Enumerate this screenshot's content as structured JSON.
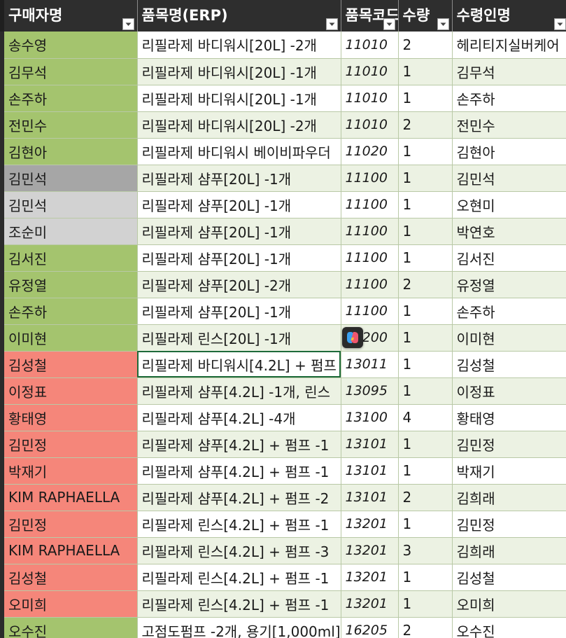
{
  "colors": {
    "header_bg": "#2e2e2e",
    "green": "#a4c46e",
    "gray_dark": "#a6a6a6",
    "gray_light": "#d2d2d2",
    "red": "#f5867a",
    "row_alt": "#ecf2e3"
  },
  "header": {
    "buyer": "구매자명",
    "item_erp": "품목명(ERP)",
    "item_code": "품목코드",
    "qty": "수량",
    "recipient": "수령인명"
  },
  "rows": [
    {
      "buyer": "송수영",
      "item": "리필라제 바디워시[20L] -2개",
      "code": "11010",
      "qty": "2",
      "recipient": "헤리티지실버케어",
      "fill": "green"
    },
    {
      "buyer": "김무석",
      "item": "리필라제 바디워시[20L] -1개",
      "code": "11010",
      "qty": "1",
      "recipient": "김무석",
      "fill": "green"
    },
    {
      "buyer": "손주하",
      "item": "리필라제 바디워시[20L] -1개",
      "code": "11010",
      "qty": "1",
      "recipient": "손주하",
      "fill": "green"
    },
    {
      "buyer": "전민수",
      "item": "리필라제 바디워시[20L] -2개",
      "code": "11010",
      "qty": "2",
      "recipient": "전민수",
      "fill": "green"
    },
    {
      "buyer": "김현아",
      "item": "리필라제 바디워시 베이비파우더",
      "code": "11020",
      "qty": "1",
      "recipient": "김현아",
      "fill": "green"
    },
    {
      "buyer": "김민석",
      "item": "리필라제 샴푸[20L] -1개",
      "code": "11100",
      "qty": "1",
      "recipient": "김민석",
      "fill": "gray_dark"
    },
    {
      "buyer": "김민석",
      "item": "리필라제 샴푸[20L] -1개",
      "code": "11100",
      "qty": "1",
      "recipient": "오현미",
      "fill": "gray_light"
    },
    {
      "buyer": "조순미",
      "item": "리필라제 샴푸[20L] -1개",
      "code": "11100",
      "qty": "1",
      "recipient": "박연호",
      "fill": "gray_light"
    },
    {
      "buyer": "김서진",
      "item": "리필라제 샴푸[20L] -1개",
      "code": "11100",
      "qty": "1",
      "recipient": "김서진",
      "fill": "green"
    },
    {
      "buyer": "유정열",
      "item": "리필라제 샴푸[20L] -2개",
      "code": "11100",
      "qty": "2",
      "recipient": "유정열",
      "fill": "green"
    },
    {
      "buyer": "손주하",
      "item": "리필라제 샴푸[20L] -1개",
      "code": "11100",
      "qty": "1",
      "recipient": "손주하",
      "fill": "green"
    },
    {
      "buyer": "이미현",
      "item": "리필라제 린스[20L] -1개",
      "code": "11200",
      "qty": "1",
      "recipient": "이미현",
      "fill": "green"
    },
    {
      "buyer": "김성철",
      "item": "리필라제 바디워시[4.2L] + 펌프",
      "code": "13011",
      "qty": "1",
      "recipient": "김성철",
      "fill": "red"
    },
    {
      "buyer": "이정표",
      "item": "리필라제 샴푸[4.2L] -1개, 린스",
      "code": "13095",
      "qty": "1",
      "recipient": "이정표",
      "fill": "red"
    },
    {
      "buyer": "황태영",
      "item": "리필라제 샴푸[4.2L] -4개",
      "code": "13100",
      "qty": "4",
      "recipient": "황태영",
      "fill": "red"
    },
    {
      "buyer": "김민정",
      "item": "리필라제 샴푸[4.2L] + 펌프 -1",
      "code": "13101",
      "qty": "1",
      "recipient": "김민정",
      "fill": "red"
    },
    {
      "buyer": "박재기",
      "item": "리필라제 샴푸[4.2L] + 펌프 -1",
      "code": "13101",
      "qty": "1",
      "recipient": "박재기",
      "fill": "red"
    },
    {
      "buyer": "KIM RAPHAELLA",
      "item": "리필라제 샴푸[4.2L] + 펌프 -2",
      "code": "13101",
      "qty": "2",
      "recipient": "김희래",
      "fill": "red"
    },
    {
      "buyer": "김민정",
      "item": "리필라제 린스[4.2L] + 펌프 -1",
      "code": "13201",
      "qty": "1",
      "recipient": "김민정",
      "fill": "red"
    },
    {
      "buyer": "KIM RAPHAELLA",
      "item": "리필라제 린스[4.2L] + 펌프 -3",
      "code": "13201",
      "qty": "3",
      "recipient": "김희래",
      "fill": "red"
    },
    {
      "buyer": "김성철",
      "item": "리필라제 린스[4.2L] + 펌프 -1",
      "code": "13201",
      "qty": "1",
      "recipient": "김성철",
      "fill": "red"
    },
    {
      "buyer": "오미희",
      "item": "리필라제 린스[4.2L] + 펌프 -1",
      "code": "13201",
      "qty": "1",
      "recipient": "오미희",
      "fill": "red"
    },
    {
      "buyer": "오수진",
      "item": "고점도펌프 -2개, 용기[1,000ml]",
      "code": "16205",
      "qty": "2",
      "recipient": "오수진",
      "fill": "green"
    }
  ],
  "selected_row": 12,
  "icons": {
    "filter": "filter-dropdown-icon",
    "copilot": "copilot-icon"
  }
}
